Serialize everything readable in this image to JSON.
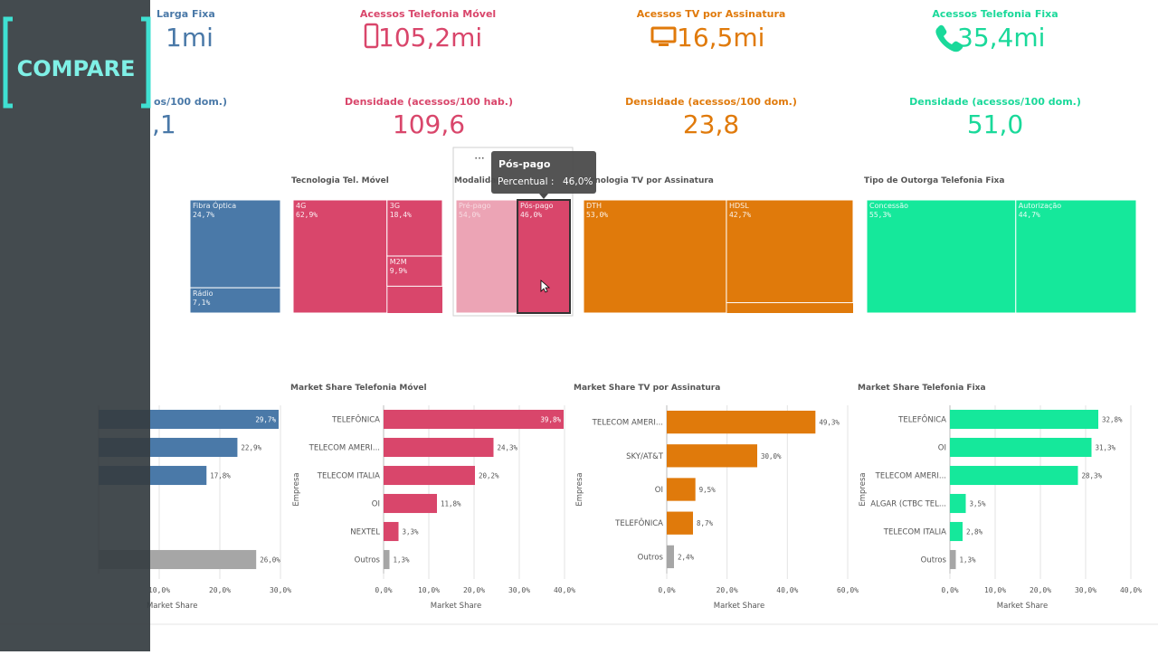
{
  "logo": "COMPARE",
  "kpis": [
    {
      "title": "Larga Fixa",
      "value": "1mi",
      "color": "#4a79a8"
    },
    {
      "title": "Acessos Telefonia Móvel",
      "value": "105,2mi",
      "color": "#d9466b"
    },
    {
      "title": "Acessos TV por Assinatura",
      "value": "16,5mi",
      "color": "#e07a0b"
    },
    {
      "title": "Acessos Telefonia Fixa",
      "value": "35,4mi",
      "color": "#1ad99a"
    }
  ],
  "densities": [
    {
      "title": "os/100 dom.)",
      "value": ",1",
      "color": "#4a79a8"
    },
    {
      "title": "Densidade (acessos/100 hab.)",
      "value": "109,6",
      "color": "#d9466b"
    },
    {
      "title": "Densidade (acessos/100 dom.)",
      "value": "23,8",
      "color": "#e07a0b"
    },
    {
      "title": "Densidade (acessos/100 dom.)",
      "value": "51,0",
      "color": "#1ad99a"
    }
  ],
  "tooltip": {
    "title": "Pós-pago",
    "label": "Percentual :",
    "value": "46,0%"
  },
  "chart_data": [
    {
      "type": "treemap",
      "categories": [
        "Fibra Óptica",
        "Rádio"
      ],
      "values": [
        24.7,
        7.1
      ],
      "value_labels": [
        "24,7%",
        "7,1%"
      ],
      "color": "#4a79a8"
    },
    {
      "type": "treemap",
      "title": "Tecnologia Tel. Móvel",
      "categories": [
        "4G",
        "3G",
        "M2M"
      ],
      "values": [
        62.9,
        18.4,
        9.9
      ],
      "value_labels": [
        "62,9%",
        "18,4%",
        "9,9%"
      ],
      "color": "#d9466b"
    },
    {
      "type": "treemap",
      "title": "Modalidad",
      "categories": [
        "Pré-pago",
        "Pós-pago"
      ],
      "values": [
        54.0,
        46.0
      ],
      "value_labels": [
        "54,0%",
        "46,0%"
      ],
      "colors": [
        "#eca4b5",
        "#d9466b"
      ]
    },
    {
      "type": "treemap",
      "title": "Tecnologia TV por Assinatura",
      "categories": [
        "DTH",
        "HDSL"
      ],
      "values": [
        53.0,
        42.7
      ],
      "value_labels": [
        "53,0%",
        "42,7%"
      ],
      "color": "#e07a0b"
    },
    {
      "type": "treemap",
      "title": "Tipo de Outorga Telefonia Fixa",
      "categories": [
        "Concessão",
        "Autorização"
      ],
      "values": [
        55.3,
        44.7
      ],
      "value_labels": [
        "55,3%",
        "44,7%"
      ],
      "color": "#15e89b"
    },
    {
      "type": "bar",
      "categories": [
        null,
        null,
        null,
        null,
        null,
        null
      ],
      "values": [
        29.7,
        22.9,
        17.8,
        null,
        null,
        26.0
      ],
      "value_labels": [
        "29,7%",
        "22,9%",
        "17,8%",
        null,
        null,
        "26,0%"
      ],
      "colors": [
        "#4a79a8",
        "#4a79a8",
        "#4a79a8",
        "#4a79a8",
        "#4a79a8",
        "#a6a6a6"
      ],
      "xlim": [
        0,
        30.3
      ],
      "xticks": [
        {
          "value": 10,
          "label": "10,0%"
        },
        {
          "value": 20,
          "label": "20,0%"
        },
        {
          "value": 30,
          "label": "30,0%"
        }
      ],
      "xlabel": "Market Share",
      "grid": true
    },
    {
      "type": "bar",
      "title": "Market Share Telefonia Móvel",
      "categories": [
        "TELEFÔNICA",
        "TELECOM AMERI...",
        "TELECOM ITALIA",
        "OI",
        "NEXTEL",
        "Outros"
      ],
      "values": [
        39.8,
        24.3,
        20.2,
        11.8,
        3.3,
        1.3
      ],
      "value_labels": [
        "39,8%",
        "24,3%",
        "20,2%",
        "11,8%",
        "3,3%",
        "1,3%"
      ],
      "colors": [
        "#d9466b",
        "#d9466b",
        "#d9466b",
        "#d9466b",
        "#d9466b",
        "#a6a6a6"
      ],
      "xlim": [
        0,
        40
      ],
      "xticks": [
        {
          "value": 0,
          "label": "0,0%"
        },
        {
          "value": 10,
          "label": "10,0%"
        },
        {
          "value": 20,
          "label": "20,0%"
        },
        {
          "value": 30,
          "label": "30,0%"
        },
        {
          "value": 40,
          "label": "40,0%"
        }
      ],
      "xlabel": "Market Share",
      "ylabel": "Empresa",
      "grid": true
    },
    {
      "type": "bar",
      "title": "Market Share TV por Assinatura",
      "categories": [
        "TELECOM AMERI...",
        "SKY/AT&T",
        "OI",
        "TELEFÔNICA",
        "Outros"
      ],
      "values": [
        49.3,
        30.0,
        9.5,
        8.7,
        2.4
      ],
      "value_labels": [
        "49,3%",
        "30,0%",
        "9,5%",
        "8,7%",
        "2,4%"
      ],
      "colors": [
        "#e07a0b",
        "#e07a0b",
        "#e07a0b",
        "#e07a0b",
        "#a6a6a6"
      ],
      "xlim": [
        0,
        60
      ],
      "xticks": [
        {
          "value": 0,
          "label": "0,0%"
        },
        {
          "value": 20,
          "label": "20,0%"
        },
        {
          "value": 40,
          "label": "40,0%"
        },
        {
          "value": 60,
          "label": "60,0%"
        }
      ],
      "xlabel": "Market Share",
      "ylabel": "Empresa",
      "grid": true
    },
    {
      "type": "bar",
      "title": "Market Share Telefonia Fixa",
      "categories": [
        "TELEFÔNICA",
        "OI",
        "TELECOM AMERI...",
        "ALGAR (CTBC TEL...",
        "TELECOM ITALIA",
        "Outros"
      ],
      "values": [
        32.8,
        31.3,
        28.3,
        3.5,
        2.8,
        1.3
      ],
      "value_labels": [
        "32,8%",
        "31,3%",
        "28,3%",
        "3,5%",
        "2,8%",
        "1,3%"
      ],
      "colors": [
        "#15e89b",
        "#15e89b",
        "#15e89b",
        "#15e89b",
        "#15e89b",
        "#a6a6a6"
      ],
      "xlim": [
        0,
        40
      ],
      "xticks": [
        {
          "value": 0,
          "label": "0,0%"
        },
        {
          "value": 10,
          "label": "10,0%"
        },
        {
          "value": 20,
          "label": "20,0%"
        },
        {
          "value": 30,
          "label": "30,0%"
        },
        {
          "value": 40,
          "label": "40,0%"
        }
      ],
      "xlabel": "Market Share",
      "ylabel": "Empresa",
      "grid": true
    }
  ]
}
